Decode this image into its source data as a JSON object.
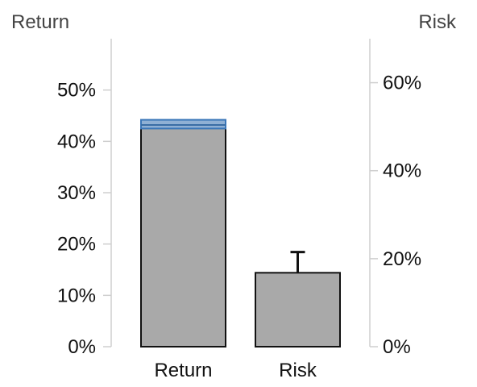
{
  "chart_data": {
    "type": "bar",
    "categories": [
      "Return",
      "Risk"
    ],
    "left_axis": {
      "title": "Return",
      "ylim": [
        0,
        0.6
      ],
      "ticks": [
        0,
        0.1,
        0.2,
        0.3,
        0.4,
        0.5
      ],
      "tick_labels": [
        "0%",
        "10%",
        "20%",
        "30%",
        "40%",
        "50%"
      ]
    },
    "right_axis": {
      "title": "Risk",
      "ylim": [
        0,
        0.7
      ],
      "ticks": [
        0,
        0.2,
        0.4,
        0.6
      ],
      "tick_labels": [
        "0%",
        "20%",
        "40%",
        "60%"
      ]
    },
    "series": [
      {
        "category": "Return",
        "axis": "left",
        "value": 0.43,
        "band": [
          0.425,
          0.442
        ],
        "band_mid": 0.432,
        "bar_color": "#a9a9a9",
        "band_color": "#8fb0d4"
      },
      {
        "category": "Risk",
        "axis": "right",
        "value": 0.168,
        "error_upper": 0.215,
        "bar_color": "#a9a9a9"
      }
    ],
    "grid": false,
    "legend": "none"
  }
}
